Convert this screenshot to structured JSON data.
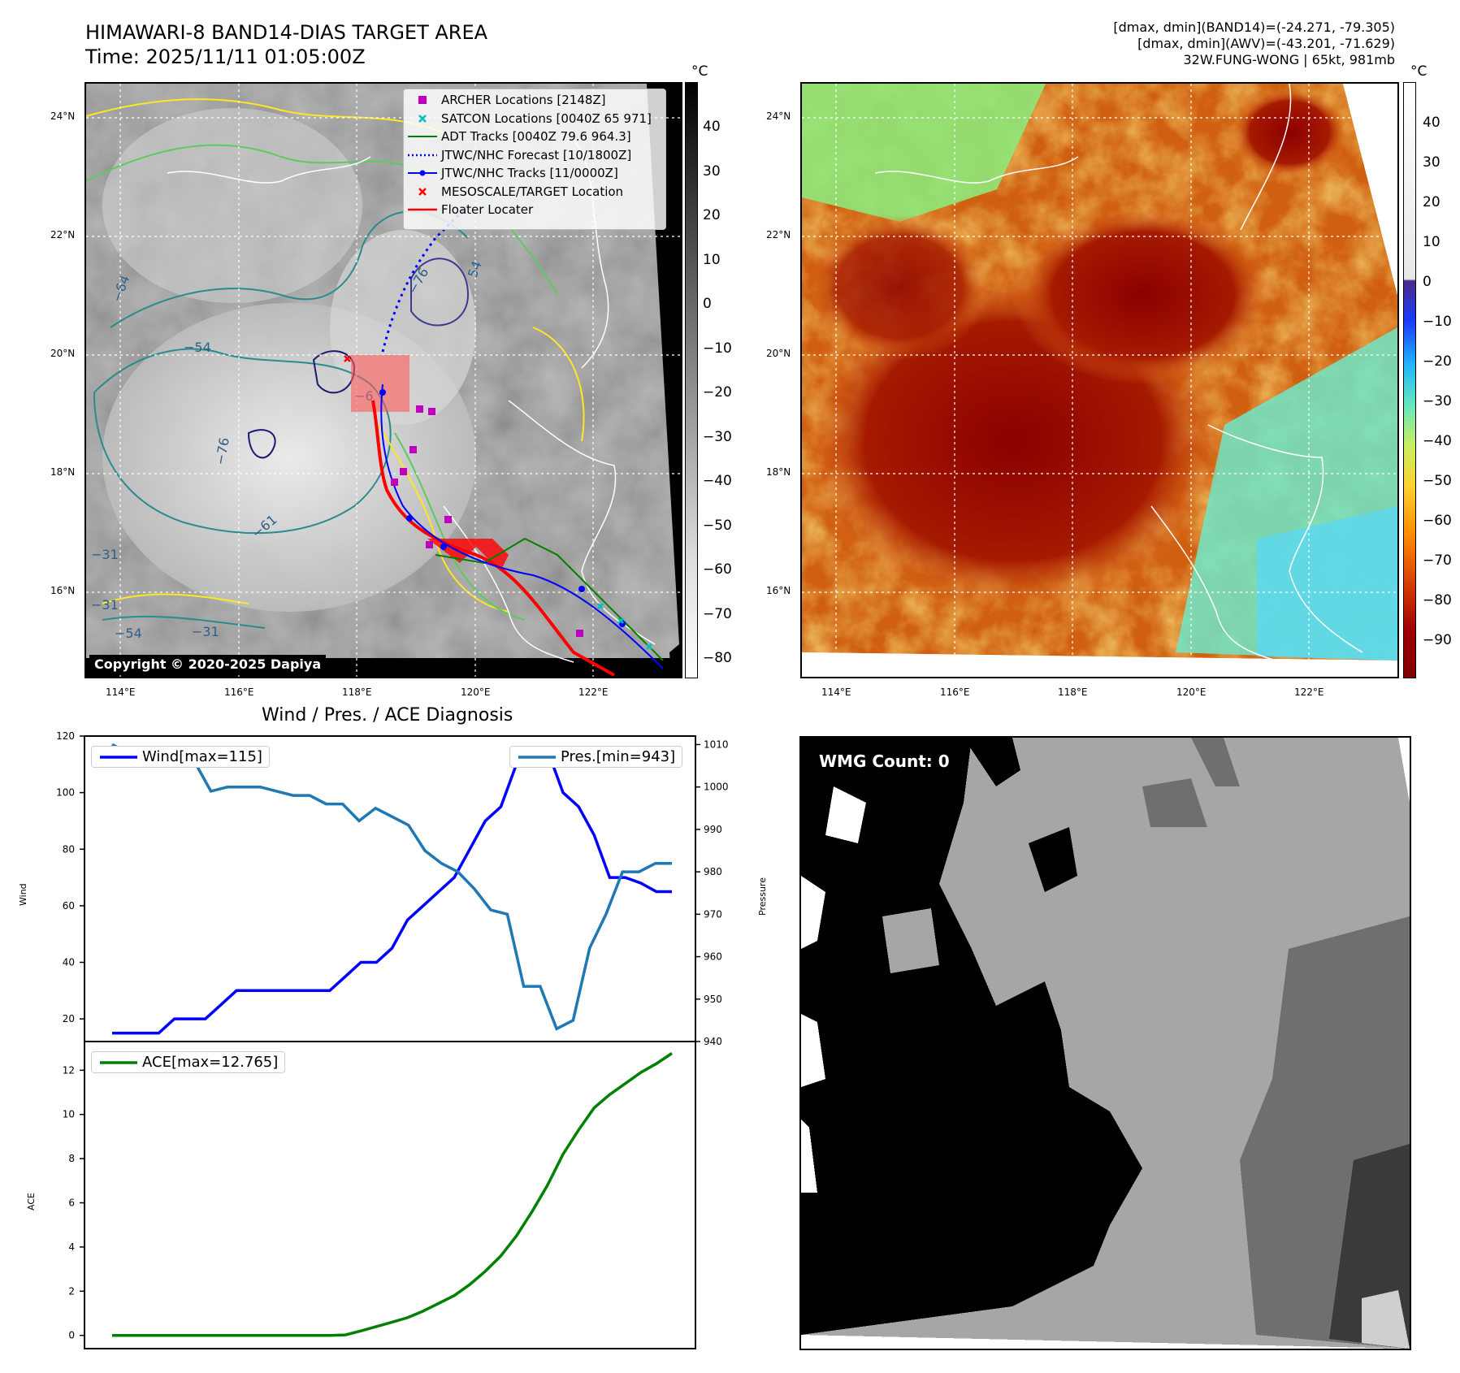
{
  "header": {
    "title_line1": "HIMAWARI-8 BAND14-DIAS TARGET AREA",
    "title_line2": "Time: 2025/11/11 01:05:00Z",
    "stats_line1": "[dmax, dmin](BAND14)=(-24.271, -79.305)",
    "stats_line2": "[dmax, dmin](AWV)=(-43.201, -71.629)",
    "stats_line3": "32W.FUNG-WONG | 65kt, 981mb"
  },
  "map": {
    "lon_labels": [
      "114°E",
      "116°E",
      "118°E",
      "120°E",
      "122°E"
    ],
    "lat_labels": [
      "24°N",
      "22°N",
      "20°N",
      "18°N",
      "16°N"
    ],
    "colorbar_unit": "°C",
    "ir_colorbar_ticks": [
      "40",
      "30",
      "20",
      "10",
      "0",
      "−10",
      "−20",
      "−30",
      "−40",
      "−50",
      "−60",
      "−70",
      "−80"
    ],
    "awv_colorbar_ticks": [
      "40",
      "30",
      "20",
      "10",
      "0",
      "−10",
      "−20",
      "−30",
      "−40",
      "−50",
      "−60",
      "−70",
      "−80",
      "−90"
    ],
    "copyright": "Copyright © 2020-2025 Dapiya",
    "contour_labels": [
      "−76",
      "−76",
      "−64",
      "−54",
      "−61",
      "−31",
      "−31",
      "−54",
      "−31",
      "−6",
      "54"
    ],
    "legend": [
      {
        "label": "ARCHER Locations [2148Z]",
        "color": "#bf00bf",
        "symbol": "square"
      },
      {
        "label": "SATCON Locations [0040Z 65 971]",
        "color": "#00bfbf",
        "symbol": "x"
      },
      {
        "label": "ADT Tracks [0040Z 79.6 964.3]",
        "color": "#008000",
        "symbol": "line"
      },
      {
        "label": "JTWC/NHC Forecast [10/1800Z]",
        "color": "#0000ff",
        "symbol": "dotted"
      },
      {
        "label": "JTWC/NHC Tracks [11/0000Z]",
        "color": "#0000ff",
        "symbol": "line-dot"
      },
      {
        "label": "MESOSCALE/TARGET Location",
        "color": "#ff0000",
        "symbol": "x"
      },
      {
        "label": "Floater Locater",
        "color": "#ff0000",
        "symbol": "line"
      }
    ]
  },
  "diag": {
    "title": "Wind / Pres. / ACE Diagnosis",
    "wind_legend": "Wind[max=115]",
    "pres_legend": "Pres.[min=943]",
    "ace_legend": "ACE[max=12.765]",
    "wind_ylabel": "Wind",
    "pres_ylabel": "Pressure",
    "ace_ylabel": "ACE",
    "wmg_label": "WMG Count: 0"
  },
  "chart_data": [
    {
      "type": "line",
      "title": "Wind / Pres. / ACE Diagnosis",
      "ylabel": "Wind",
      "ylim": [
        12,
        120
      ],
      "yticks": [
        20,
        40,
        60,
        80,
        100,
        120
      ],
      "series": [
        {
          "name": "Wind[max=115]",
          "color": "#0000ff",
          "values": [
            15,
            15,
            15,
            15,
            20,
            20,
            20,
            25,
            30,
            30,
            30,
            30,
            30,
            30,
            30,
            35,
            40,
            40,
            45,
            55,
            60,
            65,
            70,
            80,
            90,
            95,
            110,
            110,
            115,
            100,
            95,
            85,
            70,
            70,
            68,
            65,
            65
          ]
        }
      ]
    },
    {
      "type": "line",
      "ylabel": "Pressure",
      "ylim": [
        940,
        1012
      ],
      "yticks": [
        940,
        950,
        960,
        970,
        980,
        990,
        1000,
        1010
      ],
      "series": [
        {
          "name": "Pres.[min=943]",
          "color": "#1f77b4",
          "values": [
            1010,
            1008,
            1008,
            1008,
            1007,
            1006,
            999,
            1000,
            1000,
            1000,
            999,
            998,
            998,
            996,
            996,
            992,
            995,
            993,
            991,
            985,
            982,
            980,
            976,
            971,
            970,
            953,
            953,
            943,
            945,
            962,
            970,
            980,
            980,
            982,
            982
          ]
        }
      ]
    },
    {
      "type": "line",
      "ylabel": "ACE",
      "ylim": [
        -0.6,
        13.3
      ],
      "yticks": [
        0,
        2,
        4,
        6,
        8,
        10,
        12
      ],
      "series": [
        {
          "name": "ACE[max=12.765]",
          "color": "#008000",
          "values": [
            0,
            0,
            0,
            0,
            0,
            0,
            0,
            0,
            0,
            0,
            0,
            0,
            0,
            0,
            0,
            0.02,
            0.2,
            0.4,
            0.6,
            0.8,
            1.1,
            1.45,
            1.8,
            2.3,
            2.9,
            3.6,
            4.5,
            5.6,
            6.8,
            8.2,
            9.3,
            10.3,
            10.9,
            11.4,
            11.9,
            12.3,
            12.765
          ]
        }
      ]
    }
  ]
}
